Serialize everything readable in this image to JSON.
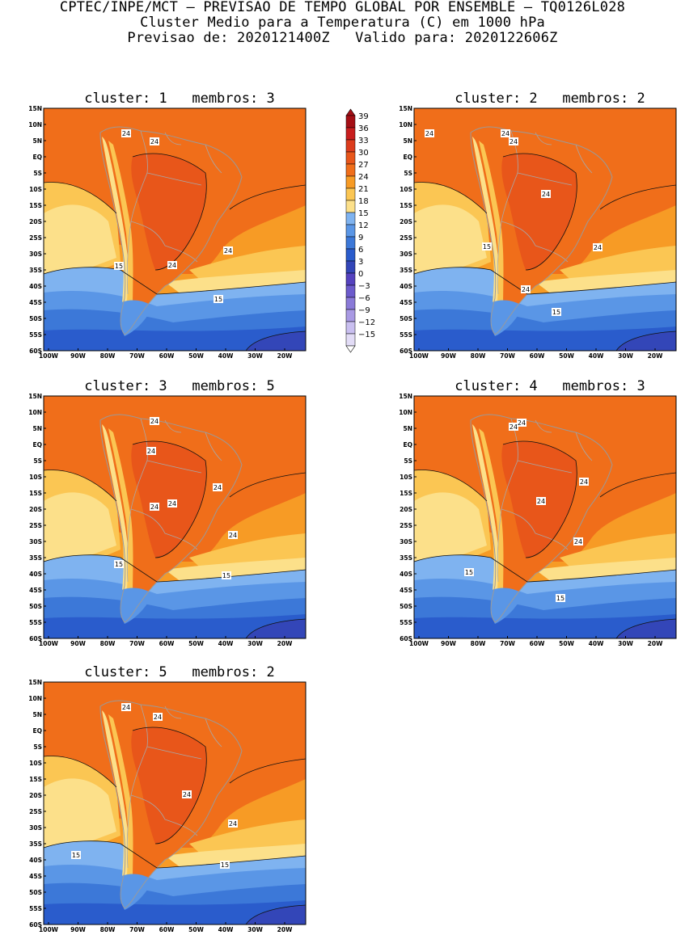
{
  "header": {
    "line1": "CPTEC/INPE/MCT – PREVISAO DE TEMPO GLOBAL POR ENSEMBLE – TQ0126L028",
    "line2": "Cluster Medio para a Temperatura (C) em 1000 hPa",
    "line3": "Previsao de: 2020121400Z   Valido para: 2020122606Z"
  },
  "axes": {
    "lat_labels": [
      "15N",
      "10N",
      "5N",
      "EQ",
      "5S",
      "10S",
      "15S",
      "20S",
      "25S",
      "30S",
      "35S",
      "40S",
      "45S",
      "50S",
      "55S",
      "60S"
    ],
    "lon_labels": [
      "100W",
      "90W",
      "80W",
      "70W",
      "60W",
      "50W",
      "40W",
      "30W",
      "20W"
    ]
  },
  "legend": {
    "levels": [
      "39",
      "36",
      "33",
      "30",
      "27",
      "24",
      "21",
      "18",
      "15",
      "12",
      "9",
      "6",
      "3",
      "0",
      "-3",
      "-6",
      "-9",
      "-12",
      "-15"
    ],
    "colors": [
      "#a50f15",
      "#c81e1e",
      "#dc3c1c",
      "#e8561a",
      "#f06e1a",
      "#f79b25",
      "#fbc653",
      "#fce08a",
      "#7fb3f0",
      "#5a96e6",
      "#3c78d8",
      "#2a5ccc",
      "#3346b8",
      "#5542bf",
      "#6c5bcc",
      "#8a7ad8",
      "#a99ae4",
      "#c9bff0",
      "#e2dcf6"
    ]
  },
  "panels": [
    {
      "title": "cluster: 1   membros: 3",
      "labels_24": [
        "24",
        "24",
        "24",
        "24"
      ],
      "labels_15": [
        "15",
        "15"
      ]
    },
    {
      "title": "cluster: 2   membros: 2",
      "labels_24": [
        "24",
        "24",
        "24",
        "24",
        "24",
        "24"
      ],
      "labels_15": [
        "15",
        "15"
      ]
    },
    {
      "title": "cluster: 3   membros: 5",
      "labels_24": [
        "24",
        "24",
        "24",
        "24",
        "24",
        "24"
      ],
      "labels_15": [
        "15",
        "15"
      ]
    },
    {
      "title": "cluster: 4   membros: 3",
      "labels_24": [
        "24",
        "24",
        "24",
        "24",
        "24"
      ],
      "labels_15": [
        "15",
        "15"
      ]
    },
    {
      "title": "cluster: 5   membros: 2",
      "labels_24": [
        "24",
        "24",
        "24",
        "24"
      ],
      "labels_15": [
        "15",
        "15"
      ]
    }
  ]
}
